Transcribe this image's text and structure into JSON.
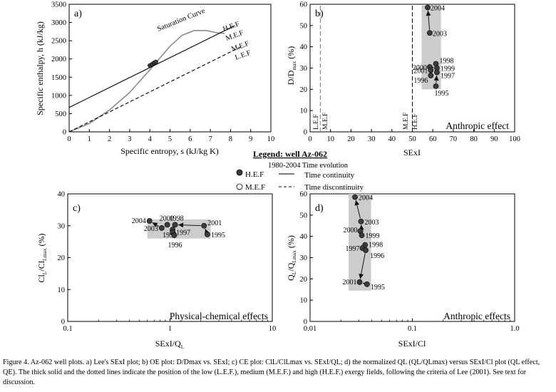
{
  "chart_data": [
    {
      "type": "line",
      "panel": "a)",
      "title": "Lee's SExI plot",
      "xlabel": "Specific entropy, s (kJ/kg K)",
      "ylabel": "Specific enthalpy, h (kJ/kg)",
      "xlim": [
        0,
        10
      ],
      "ylim": [
        0,
        3500
      ],
      "xticks": [
        0,
        1,
        2,
        3,
        4,
        5,
        6,
        7,
        8,
        9,
        10
      ],
      "yticks": [
        0,
        500,
        1000,
        1500,
        2000,
        2500,
        3000,
        3500
      ],
      "curve_label": "Saturation Curve",
      "saturation_curve": [
        [
          0,
          0
        ],
        [
          1,
          230
        ],
        [
          2,
          600
        ],
        [
          3,
          1080
        ],
        [
          4,
          1700
        ],
        [
          5,
          2350
        ],
        [
          5.6,
          2650
        ],
        [
          6.2,
          2780
        ],
        [
          6.8,
          2780
        ],
        [
          7.3,
          2720
        ],
        [
          7.7,
          2700
        ]
      ],
      "lines": [
        {
          "name": "H.E.F",
          "style": "solid",
          "points": [
            [
              0,
              670
            ],
            [
              8.2,
              2910
            ]
          ]
        },
        {
          "name": "M.E.F",
          "style": "dashed",
          "points": [
            [
              0,
              0
            ],
            [
              8.5,
              2330
            ]
          ]
        }
      ],
      "line_labels": [
        "H.E.F",
        "M.E.F",
        "M.E.F",
        "L.E.F"
      ],
      "points": [
        [
          4.0,
          1820
        ],
        [
          4.1,
          1850
        ],
        [
          4.2,
          1890
        ],
        [
          4.3,
          1920
        ]
      ]
    },
    {
      "type": "scatter",
      "panel": "b)",
      "title": "OE plot",
      "xlabel": "SExI",
      "ylabel_main": "D/D",
      "ylabel_sub": "max",
      "ylabel_unit": "(%)",
      "xlim": [
        0,
        100
      ],
      "ylim": [
        0,
        60
      ],
      "xticks": [
        0,
        10,
        20,
        30,
        40,
        50,
        60,
        70,
        80,
        90,
        100
      ],
      "yticks": [
        0,
        10,
        20,
        30,
        40,
        50,
        60
      ],
      "vlines": [
        {
          "x": 5,
          "style": "dashed",
          "labels": [
            "L.E.F",
            "M.E.F"
          ]
        },
        {
          "x": 50,
          "style": "dashed",
          "labels": [
            "M.E.F",
            "H.E.F"
          ]
        }
      ],
      "band": {
        "x": [
          54.5,
          64
        ],
        "y": [
          20,
          59.5
        ]
      },
      "annotation": "Anthropic effect",
      "series": [
        {
          "label": "2004",
          "x": 57.5,
          "y": 58.5
        },
        {
          "label": "2003",
          "x": 58.5,
          "y": 46.5
        },
        {
          "label": "1998",
          "x": 61.5,
          "y": 32
        },
        {
          "label": "2000",
          "x": 58.5,
          "y": 30.5
        },
        {
          "label": "1999",
          "x": 62,
          "y": 30
        },
        {
          "label": "2001",
          "x": 59,
          "y": 29
        },
        {
          "label": "1997",
          "x": 62,
          "y": 28
        },
        {
          "label": "1996",
          "x": 59,
          "y": 26.5
        },
        {
          "label": "1995",
          "x": 61.5,
          "y": 21.5
        }
      ]
    },
    {
      "type": "scatter",
      "panel": "c)",
      "title": "CE plot",
      "xlabel_main": "SExI/Q",
      "xlabel_sub": "L",
      "ylabel_main": "Cl",
      "ylabel_sub1": "L",
      "ylabel_mid": "/Cl",
      "ylabel_sub2": "Lmax",
      "ylabel_unit": "(%)",
      "xscale": "log",
      "xlim": [
        0.1,
        10
      ],
      "ylim": [
        0,
        40
      ],
      "xticks": [
        0.1,
        1,
        10
      ],
      "xtick_labels": [
        "0.1",
        "1",
        "10"
      ],
      "yticks": [
        0,
        10,
        20,
        30,
        40
      ],
      "band": {
        "x": [
          0.6,
          2.5
        ],
        "y": [
          26,
          32
        ]
      },
      "annotation": "Physical-chemical effects",
      "series": [
        {
          "label": "2004",
          "x": 0.63,
          "y": 31.5
        },
        {
          "label": "2003",
          "x": 0.83,
          "y": 29.3
        },
        {
          "label": "2000",
          "x": 0.94,
          "y": 30.3
        },
        {
          "label": "1998",
          "x": 1.12,
          "y": 30.3
        },
        {
          "label": "1999",
          "x": 1.06,
          "y": 28.8
        },
        {
          "label": "1997",
          "x": 1.06,
          "y": 28.0
        },
        {
          "label": "1996",
          "x": 1.1,
          "y": 27.0
        },
        {
          "label": "2001",
          "x": 2.15,
          "y": 30.0
        },
        {
          "label": "1995",
          "x": 2.32,
          "y": 27.3
        }
      ]
    },
    {
      "type": "scatter",
      "panel": "d)",
      "title": "QE plot",
      "xlabel": "SExI/Cl",
      "ylabel_main": "Q",
      "ylabel_sub1": "L",
      "ylabel_mid": "/Q",
      "ylabel_sub2": "Lmax",
      "ylabel_unit": "(%)",
      "xscale": "log",
      "xlim": [
        0.01,
        1.0
      ],
      "ylim": [
        0,
        60
      ],
      "xticks": [
        0.01,
        0.1,
        1.0
      ],
      "xtick_labels": [
        "0.01",
        "0.1",
        "1.0"
      ],
      "yticks": [
        0,
        10,
        20,
        30,
        40,
        50,
        60
      ],
      "band": {
        "x": [
          0.0238,
          0.0395
        ],
        "y": [
          14.5,
          60
        ]
      },
      "annotation": "Anthropic effects",
      "series": [
        {
          "label": "2004",
          "x": 0.0275,
          "y": 58.5
        },
        {
          "label": "2003",
          "x": 0.0315,
          "y": 47.0
        },
        {
          "label": "2000",
          "x": 0.031,
          "y": 42.5
        },
        {
          "label": "1999",
          "x": 0.032,
          "y": 40.5
        },
        {
          "label": "1998",
          "x": 0.0345,
          "y": 36.0
        },
        {
          "label": "1997",
          "x": 0.0325,
          "y": 34.5
        },
        {
          "label": "1996",
          "x": 0.035,
          "y": 33.5
        },
        {
          "label": "2001",
          "x": 0.0305,
          "y": 18.5
        },
        {
          "label": "1995",
          "x": 0.036,
          "y": 17.5
        }
      ]
    }
  ],
  "legend": {
    "title": "Legend: well Az-062",
    "subtitle": "1980-2004 Time evolution",
    "items": [
      "H.E.F",
      "M.E.F"
    ],
    "line_items": [
      "Time continuity",
      "Time discontinuity"
    ]
  },
  "caption": "Figure 4. Az-062 well plots. a) Lee's SExI plot; b) OE plot: D/Dmax vs. SExI; c) CE plot: ClL/ClLmax vs. SExI/QL; d) the normalized QL (QL/QLmax) versus SExI/Cl plot (QL effect, QE). The thick solid and the dotted lines indicate the position of the low (L.E.F.), medium (M.E.F.) and high (H.E.F.) exergy fields, following the criteria of Lee (2001). See text for discussion."
}
